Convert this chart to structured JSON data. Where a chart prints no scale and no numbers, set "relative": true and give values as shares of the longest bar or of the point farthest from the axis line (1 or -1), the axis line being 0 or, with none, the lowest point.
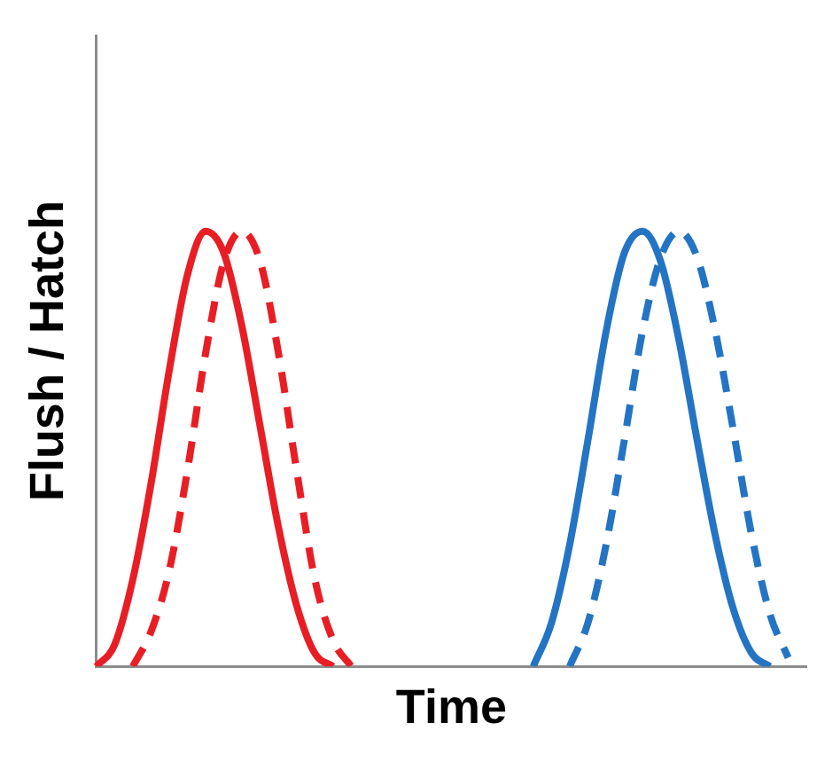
{
  "chart_data": {
    "type": "line",
    "relative": true,
    "xlabel": "Time",
    "ylabel": "Flush / Hatch",
    "categories": [
      null,
      null,
      null,
      null,
      null,
      null,
      null,
      null,
      null,
      null,
      null,
      null,
      null,
      null,
      null,
      null,
      null,
      null,
      null,
      null,
      null,
      null,
      null,
      null,
      null,
      null,
      null,
      null,
      null,
      null,
      null,
      null,
      null,
      null,
      null,
      null,
      null,
      null,
      null,
      null
    ],
    "series": [
      {
        "color": "#e81e25",
        "line_style": "solid",
        "values": [
          0,
          0.05,
          0.2,
          0.42,
          0.68,
          0.9,
          1.0,
          0.95,
          0.78,
          0.55,
          0.32,
          0.14,
          0.03,
          0,
          null,
          null,
          null,
          null,
          null,
          null,
          null,
          null,
          null,
          null,
          null,
          null,
          null,
          null,
          null,
          null,
          null,
          null,
          null,
          null,
          null,
          null,
          null,
          null,
          null,
          null
        ]
      },
      {
        "color": "#e81e25",
        "line_style": "dashed",
        "values": [
          null,
          null,
          0,
          0.08,
          0.22,
          0.45,
          0.72,
          0.93,
          1.0,
          0.93,
          0.72,
          0.45,
          0.2,
          0.06,
          0,
          null,
          null,
          null,
          null,
          null,
          null,
          null,
          null,
          null,
          null,
          null,
          null,
          null,
          null,
          null,
          null,
          null,
          null,
          null,
          null,
          null,
          null,
          null,
          null,
          null
        ]
      },
      {
        "color": "#2474c4",
        "line_style": "solid",
        "values": [
          null,
          null,
          null,
          null,
          null,
          null,
          null,
          null,
          null,
          null,
          null,
          null,
          null,
          null,
          null,
          null,
          null,
          null,
          null,
          null,
          null,
          null,
          null,
          null,
          0,
          0.1,
          0.28,
          0.52,
          0.77,
          0.95,
          1.0,
          0.93,
          0.75,
          0.52,
          0.3,
          0.13,
          0.03,
          0,
          null,
          null
        ]
      },
      {
        "color": "#2474c4",
        "line_style": "dashed",
        "values": [
          null,
          null,
          null,
          null,
          null,
          null,
          null,
          null,
          null,
          null,
          null,
          null,
          null,
          null,
          null,
          null,
          null,
          null,
          null,
          null,
          null,
          null,
          null,
          null,
          null,
          null,
          0,
          0.1,
          0.28,
          0.52,
          0.77,
          0.94,
          1.0,
          0.94,
          0.77,
          0.54,
          0.3,
          0.12,
          0.02,
          null
        ]
      }
    ],
    "grid": false,
    "legend": false,
    "tick_labels": false,
    "marker": "none"
  }
}
